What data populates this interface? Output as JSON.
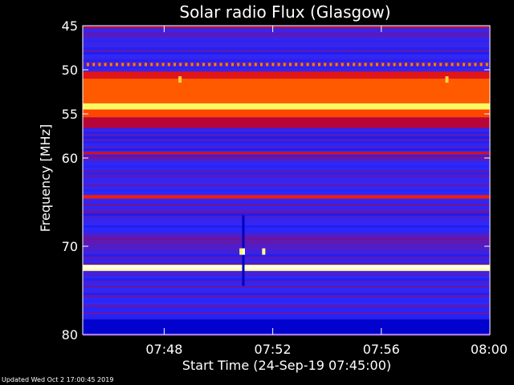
{
  "chart_data": {
    "type": "heatmap",
    "title": "Solar radio Flux (Glasgow)",
    "xlabel": "Start Time (24-Sep-19 07:45:00)",
    "ylabel": "Frequency [MHz]",
    "xlim": [
      "07:45:00",
      "08:00:00"
    ],
    "ylim": [
      45,
      80
    ],
    "y_inverted": true,
    "x_ticks": [
      "07:48",
      "07:52",
      "07:56",
      "08:00"
    ],
    "y_ticks": [
      45,
      50,
      55,
      60,
      70,
      80
    ],
    "colormap": [
      "#000066",
      "#0000cc",
      "#2a2aff",
      "#aa0044",
      "#ff2200",
      "#ff8800",
      "#ffff66",
      "#ffffff"
    ],
    "background_intensity": 0.3,
    "features": [
      {
        "kind": "band",
        "freq_from": 45.1,
        "freq_to": 45.3,
        "intensity": 0.48
      },
      {
        "kind": "dashed-band",
        "freq": 49.4,
        "intensity": 0.7
      },
      {
        "kind": "band",
        "freq_from": 50.2,
        "freq_to": 51.0,
        "intensity": 0.52
      },
      {
        "kind": "band",
        "freq_from": 51.0,
        "freq_to": 53.8,
        "intensity": 0.65
      },
      {
        "kind": "band",
        "freq_from": 53.8,
        "freq_to": 54.5,
        "intensity": 0.85
      },
      {
        "kind": "band",
        "freq_from": 54.5,
        "freq_to": 55.4,
        "intensity": 0.62
      },
      {
        "kind": "band",
        "freq_from": 55.4,
        "freq_to": 56.6,
        "intensity": 0.45
      },
      {
        "kind": "band",
        "freq_from": 59.3,
        "freq_to": 59.6,
        "intensity": 0.5
      },
      {
        "kind": "band",
        "freq_from": 64.2,
        "freq_to": 64.6,
        "intensity": 0.55
      },
      {
        "kind": "band",
        "freq_from": 72.1,
        "freq_to": 72.8,
        "intensity": 0.92
      },
      {
        "kind": "band",
        "freq_from": 72.3,
        "freq_to": 72.5,
        "intensity": 1.0
      },
      {
        "kind": "band",
        "freq_from": 78.3,
        "freq_to": 80.0,
        "intensity": 0.15
      },
      {
        "kind": "dot",
        "time": "07:48:35",
        "freq": 51.1,
        "intensity": 0.8
      },
      {
        "kind": "dot",
        "time": "07:58:25",
        "freq": 51.1,
        "intensity": 0.8
      },
      {
        "kind": "vertical-burst",
        "time": "07:50:55",
        "freq_from": 66.5,
        "freq_to": 74.5,
        "intensity": 0.12
      },
      {
        "kind": "dot",
        "time": "07:50:55",
        "freq": 70.6,
        "intensity": 1.0
      },
      {
        "kind": "dot",
        "time": "07:50:50",
        "freq": 70.6,
        "intensity": 0.85
      },
      {
        "kind": "dot",
        "time": "07:51:40",
        "freq": 70.6,
        "intensity": 0.9
      }
    ]
  },
  "footer": {
    "updated": "Updated Wed Oct  2 17:00:45 2019"
  }
}
